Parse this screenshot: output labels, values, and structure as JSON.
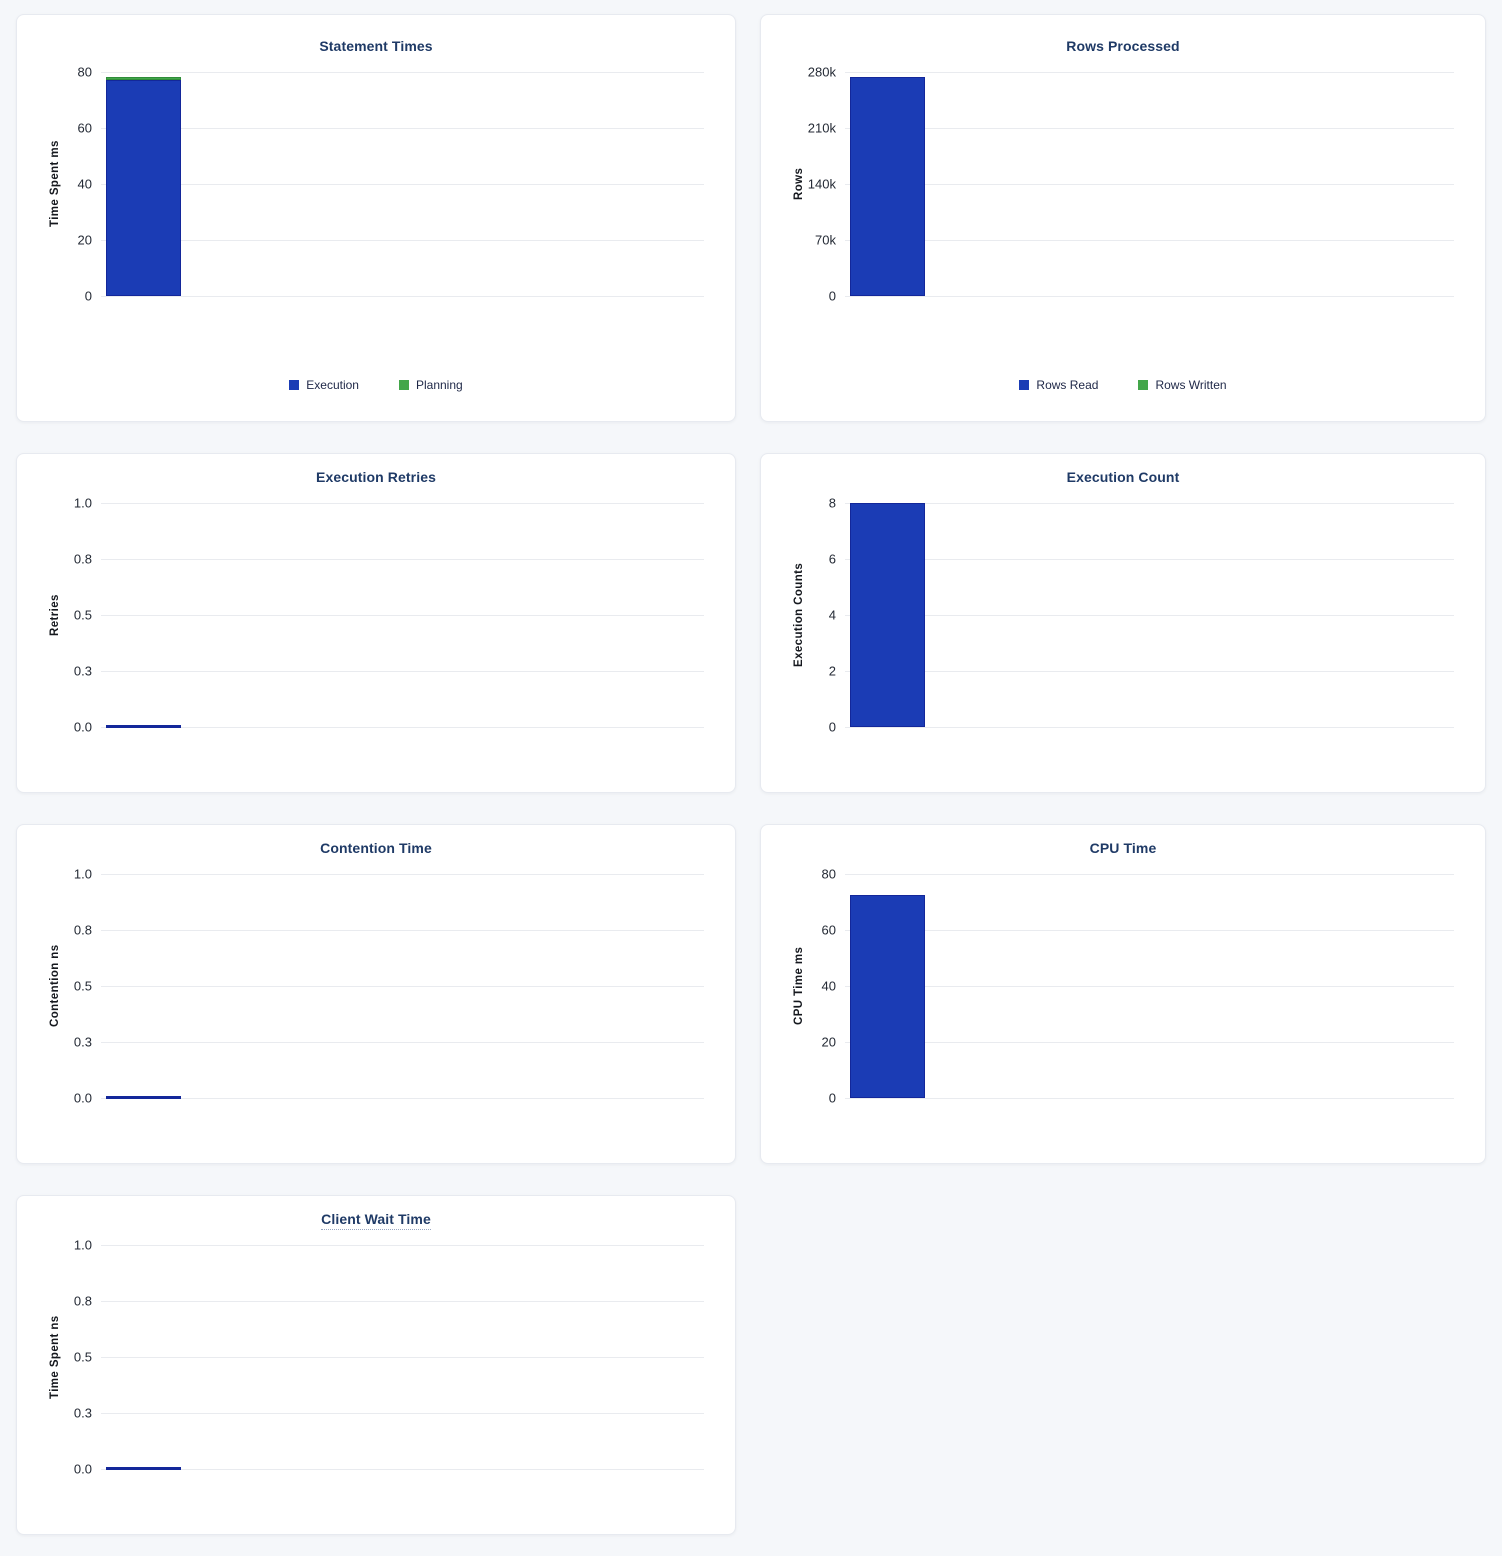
{
  "page": {
    "background_color": "#f5f7fa",
    "panel_background": "#ffffff",
    "title_color": "#1f3a66",
    "gridline_color": "#e9ebef",
    "tick_color": "#242a35"
  },
  "panels": [
    {
      "id": "statement-times",
      "title": "Statement Times",
      "ylabel": "Time Spent ms",
      "title_tooltip_underline": false,
      "legend": [
        {
          "label": "Execution",
          "color": "#1b3cb5"
        },
        {
          "label": "Planning",
          "color": "#43a64a"
        }
      ]
    },
    {
      "id": "rows-processed",
      "title": "Rows Processed",
      "ylabel": "Rows",
      "title_tooltip_underline": false,
      "legend": [
        {
          "label": "Rows Read",
          "color": "#1b3cb5"
        },
        {
          "label": "Rows Written",
          "color": "#43a64a"
        }
      ]
    },
    {
      "id": "execution-retries",
      "title": "Execution Retries",
      "ylabel": "Retries",
      "title_tooltip_underline": false,
      "legend": []
    },
    {
      "id": "execution-count",
      "title": "Execution Count",
      "ylabel": "Execution Counts",
      "title_tooltip_underline": false,
      "legend": []
    },
    {
      "id": "contention-time",
      "title": "Contention Time",
      "ylabel": "Contention ns",
      "title_tooltip_underline": false,
      "legend": []
    },
    {
      "id": "cpu-time",
      "title": "CPU Time",
      "ylabel": "CPU Time ms",
      "title_tooltip_underline": false,
      "legend": []
    },
    {
      "id": "client-wait-time",
      "title": "Client Wait Time",
      "ylabel": "Time Spent ns",
      "title_tooltip_underline": true,
      "legend": []
    }
  ],
  "chart_data": [
    {
      "type": "bar",
      "title": "Statement Times",
      "xlabel": "",
      "ylabel": "Time Spent ms",
      "stacked": true,
      "grid": true,
      "legend_position": "bottom",
      "categories": [
        ""
      ],
      "series": [
        {
          "name": "Execution",
          "color": "#1b3cb5",
          "border": "#13279a",
          "values": [
            77
          ]
        },
        {
          "name": "Planning",
          "color": "#43a64a",
          "border": "#2f8c3a",
          "values": [
            1.2
          ]
        }
      ],
      "ylim": [
        0,
        80
      ],
      "yticks": [
        "80",
        "60",
        "40",
        "20",
        "0"
      ]
    },
    {
      "type": "bar",
      "title": "Rows Processed",
      "xlabel": "",
      "ylabel": "Rows",
      "stacked": true,
      "grid": true,
      "legend_position": "bottom",
      "categories": [
        ""
      ],
      "series": [
        {
          "name": "Rows Read",
          "color": "#1b3cb5",
          "border": "#13279a",
          "values": [
            274000
          ]
        },
        {
          "name": "Rows Written",
          "color": "#43a64a",
          "border": "#2f8c3a",
          "values": [
            0
          ]
        }
      ],
      "ylim": [
        0,
        280000
      ],
      "yticks": [
        "280k",
        "210k",
        "140k",
        "70k",
        "0"
      ]
    },
    {
      "type": "bar",
      "title": "Execution Retries",
      "xlabel": "",
      "ylabel": "Retries",
      "stacked": false,
      "grid": true,
      "legend_position": "none",
      "categories": [
        ""
      ],
      "series": [
        {
          "name": "Retries",
          "color": "#1b3cb5",
          "border": "#13279a",
          "values": [
            0
          ]
        }
      ],
      "ylim": [
        0,
        1
      ],
      "yticks": [
        "1.0",
        "0.8",
        "0.5",
        "0.3",
        "0.0"
      ]
    },
    {
      "type": "bar",
      "title": "Execution Count",
      "xlabel": "",
      "ylabel": "Execution Counts",
      "stacked": false,
      "grid": true,
      "legend_position": "none",
      "categories": [
        ""
      ],
      "series": [
        {
          "name": "Execution Count",
          "color": "#1b3cb5",
          "border": "#13279a",
          "values": [
            8
          ]
        }
      ],
      "ylim": [
        0,
        8
      ],
      "yticks": [
        "8",
        "6",
        "4",
        "2",
        "0"
      ]
    },
    {
      "type": "bar",
      "title": "Contention Time",
      "xlabel": "",
      "ylabel": "Contention ns",
      "stacked": false,
      "grid": true,
      "legend_position": "none",
      "categories": [
        ""
      ],
      "series": [
        {
          "name": "Contention",
          "color": "#1b3cb5",
          "border": "#13279a",
          "values": [
            0
          ]
        }
      ],
      "ylim": [
        0,
        1
      ],
      "yticks": [
        "1.0",
        "0.8",
        "0.5",
        "0.3",
        "0.0"
      ]
    },
    {
      "type": "bar",
      "title": "CPU Time",
      "xlabel": "",
      "ylabel": "CPU Time ms",
      "stacked": false,
      "grid": true,
      "legend_position": "none",
      "categories": [
        ""
      ],
      "series": [
        {
          "name": "CPU Time",
          "color": "#1b3cb5",
          "border": "#13279a",
          "values": [
            72.5
          ]
        }
      ],
      "ylim": [
        0,
        80
      ],
      "yticks": [
        "80",
        "60",
        "40",
        "20",
        "0"
      ]
    },
    {
      "type": "bar",
      "title": "Client Wait Time",
      "xlabel": "",
      "ylabel": "Time Spent ns",
      "stacked": false,
      "grid": true,
      "legend_position": "none",
      "categories": [
        ""
      ],
      "series": [
        {
          "name": "Client Wait",
          "color": "#1b3cb5",
          "border": "#13279a",
          "values": [
            0
          ]
        }
      ],
      "ylim": [
        0,
        1
      ],
      "yticks": [
        "1.0",
        "0.8",
        "0.5",
        "0.3",
        "0.0"
      ]
    }
  ]
}
